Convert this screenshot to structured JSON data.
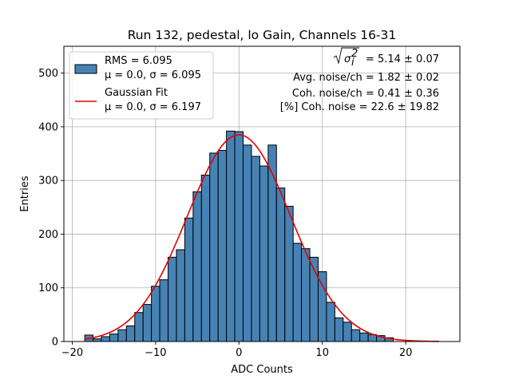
{
  "chart_data": {
    "type": "bar",
    "title": "Run 132, pedestal, lo Gain, Channels 16-31",
    "xlabel": "ADC Counts",
    "ylabel": "Entries",
    "xlim": [
      -21,
      26.5
    ],
    "ylim": [
      0,
      550
    ],
    "xticks": [
      -20,
      -10,
      0,
      10,
      20
    ],
    "yticks": [
      0,
      100,
      200,
      300,
      400,
      500
    ],
    "xtick_labels": [
      "−20",
      "−10",
      "0",
      "10",
      "20"
    ],
    "ytick_labels": [
      "0",
      "100",
      "200",
      "300",
      "400",
      "500"
    ],
    "grid": true,
    "legend_position": "top-left",
    "bin_width": 1.0,
    "bin_edges_start": -18.5,
    "counts": [
      12,
      5,
      9,
      14,
      22,
      29,
      54,
      69,
      103,
      115,
      157,
      171,
      230,
      279,
      310,
      351,
      356,
      392,
      391,
      366,
      345,
      327,
      366,
      286,
      252,
      183,
      173,
      157,
      130,
      73,
      44,
      36,
      22,
      16,
      13,
      11,
      7
    ],
    "fit": {
      "mu": 0.0,
      "sigma": 6.197,
      "amplitude": 385,
      "x_range": [
        -18.5,
        24
      ]
    },
    "series": [
      {
        "name": "RMS = 6.095",
        "stats": "μ = 0.0, σ = 6.095",
        "type": "histogram",
        "color": "#4682b4",
        "edge": "#000000"
      },
      {
        "name": "Gaussian Fit",
        "stats": "μ = 0.0, σ = 6.197",
        "type": "line",
        "color": "#e00000"
      }
    ],
    "annotations": {
      "sigma_expr": "= 5.14 ± 0.07",
      "avg_noise": "Avg. noise/ch = 1.82 ± 0.02",
      "coh_noise": "Coh. noise/ch = 0.41 ± 0.36",
      "pct_coh_noise": "[%] Coh. noise = 22.6 ± 19.82"
    }
  }
}
